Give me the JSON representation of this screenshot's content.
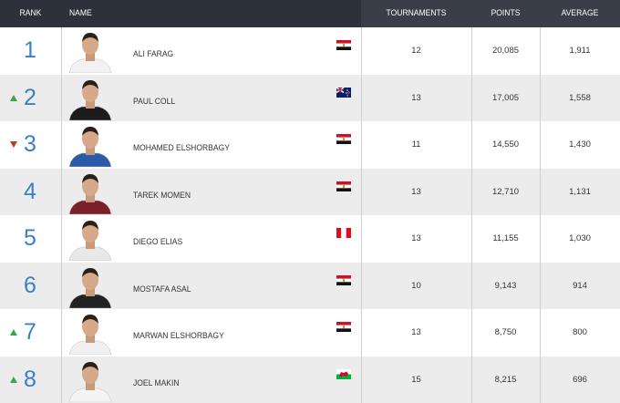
{
  "table": {
    "header": [
      "RANK",
      "NAME",
      "TOURNAMENTS",
      "POINTS",
      "AVERAGE"
    ],
    "rows": [
      {
        "rank": "1",
        "trend": null,
        "name": "ALI FARAG",
        "flag": "egypt",
        "tournaments": "12",
        "points": "20,085",
        "average": "1,911"
      },
      {
        "rank": "2",
        "trend": "up",
        "name": "PAUL COLL",
        "flag": "new-zealand",
        "tournaments": "13",
        "points": "17,005",
        "average": "1,558"
      },
      {
        "rank": "3",
        "trend": "down",
        "name": "MOHAMED ELSHORBAGY",
        "flag": "egypt",
        "tournaments": "11",
        "points": "14,550",
        "average": "1,430"
      },
      {
        "rank": "4",
        "trend": null,
        "name": "TAREK MOMEN",
        "flag": "egypt",
        "tournaments": "13",
        "points": "12,710",
        "average": "1,131"
      },
      {
        "rank": "5",
        "trend": null,
        "name": "DIEGO ELIAS",
        "flag": "peru",
        "tournaments": "13",
        "points": "11,155",
        "average": "1,030"
      },
      {
        "rank": "6",
        "trend": null,
        "name": "MOSTAFA ASAL",
        "flag": "egypt",
        "tournaments": "10",
        "points": "9,143",
        "average": "914"
      },
      {
        "rank": "7",
        "trend": "up",
        "name": "MARWAN ELSHORBAGY",
        "flag": "egypt",
        "tournaments": "13",
        "points": "8,750",
        "average": "800"
      },
      {
        "rank": "8",
        "trend": "up",
        "name": "JOEL MAKIN",
        "flag": "wales",
        "tournaments": "15",
        "points": "8,215",
        "average": "696"
      }
    ]
  }
}
